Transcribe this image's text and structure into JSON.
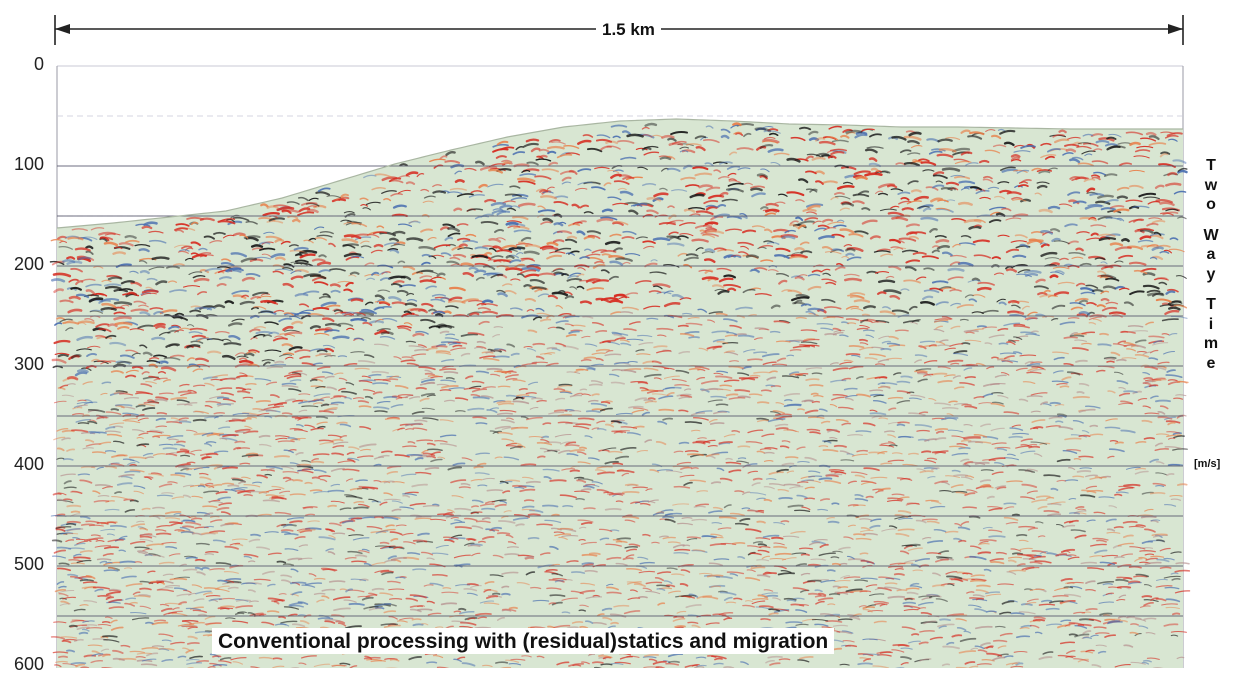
{
  "chart_data": {
    "type": "heatmap",
    "title": "",
    "scale_label": "1.5 km",
    "ylabel_letters": [
      "T",
      "w",
      "o",
      "",
      "W",
      "a",
      "y",
      "",
      "T",
      "i",
      "m",
      "e"
    ],
    "yunit": "[m/s]",
    "yticks": [
      0,
      100,
      200,
      300,
      400,
      500,
      600
    ],
    "ylim": [
      0,
      600
    ],
    "gridlines_y": [
      100,
      150,
      200,
      250,
      300,
      350,
      400,
      450,
      500,
      550
    ],
    "surface_profile": {
      "x_fraction": [
        0.0,
        0.05,
        0.1,
        0.15,
        0.2,
        0.25,
        0.3,
        0.35,
        0.4,
        0.45,
        0.5,
        0.55,
        0.6,
        0.65,
        0.7,
        0.75,
        0.8,
        0.85,
        0.9,
        0.95,
        1.0
      ],
      "time": [
        162,
        157,
        151,
        145,
        132,
        115,
        98,
        84,
        71,
        61,
        55,
        53,
        55,
        58,
        59,
        61,
        61,
        62,
        63,
        63,
        63
      ]
    },
    "wavelet_colors": [
      "#1a1a1a",
      "#d62a1f",
      "#e8804a",
      "#4a6fb0",
      "#b38a8a"
    ],
    "background_color": "#d8e6d2",
    "caption": "Conventional processing with (residual)statics and migration"
  }
}
